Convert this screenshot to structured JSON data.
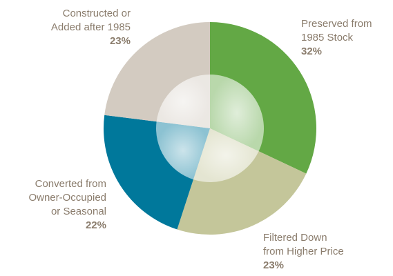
{
  "chart_data": {
    "type": "pie",
    "title": "",
    "slices": [
      {
        "label_lines": [
          "Preserved from",
          "1985 Stock"
        ],
        "value": 32,
        "pct_label": "32%",
        "color": "#63a845"
      },
      {
        "label_lines": [
          "Filtered Down",
          "from Higher Price"
        ],
        "value": 23,
        "pct_label": "23%",
        "color": "#c4c69a"
      },
      {
        "label_lines": [
          "Converted from",
          "Owner-Occupied",
          "or Seasonal"
        ],
        "value": 22,
        "pct_label": "22%",
        "color": "#00789b"
      },
      {
        "label_lines": [
          "Constructed or",
          "Added after 1985"
        ],
        "value": 23,
        "pct_label": "23%",
        "color": "#d3cbc1"
      }
    ],
    "start_angle_deg": 0,
    "direction": "clockwise",
    "legend": "none",
    "label_color": "#8a7c6c"
  }
}
